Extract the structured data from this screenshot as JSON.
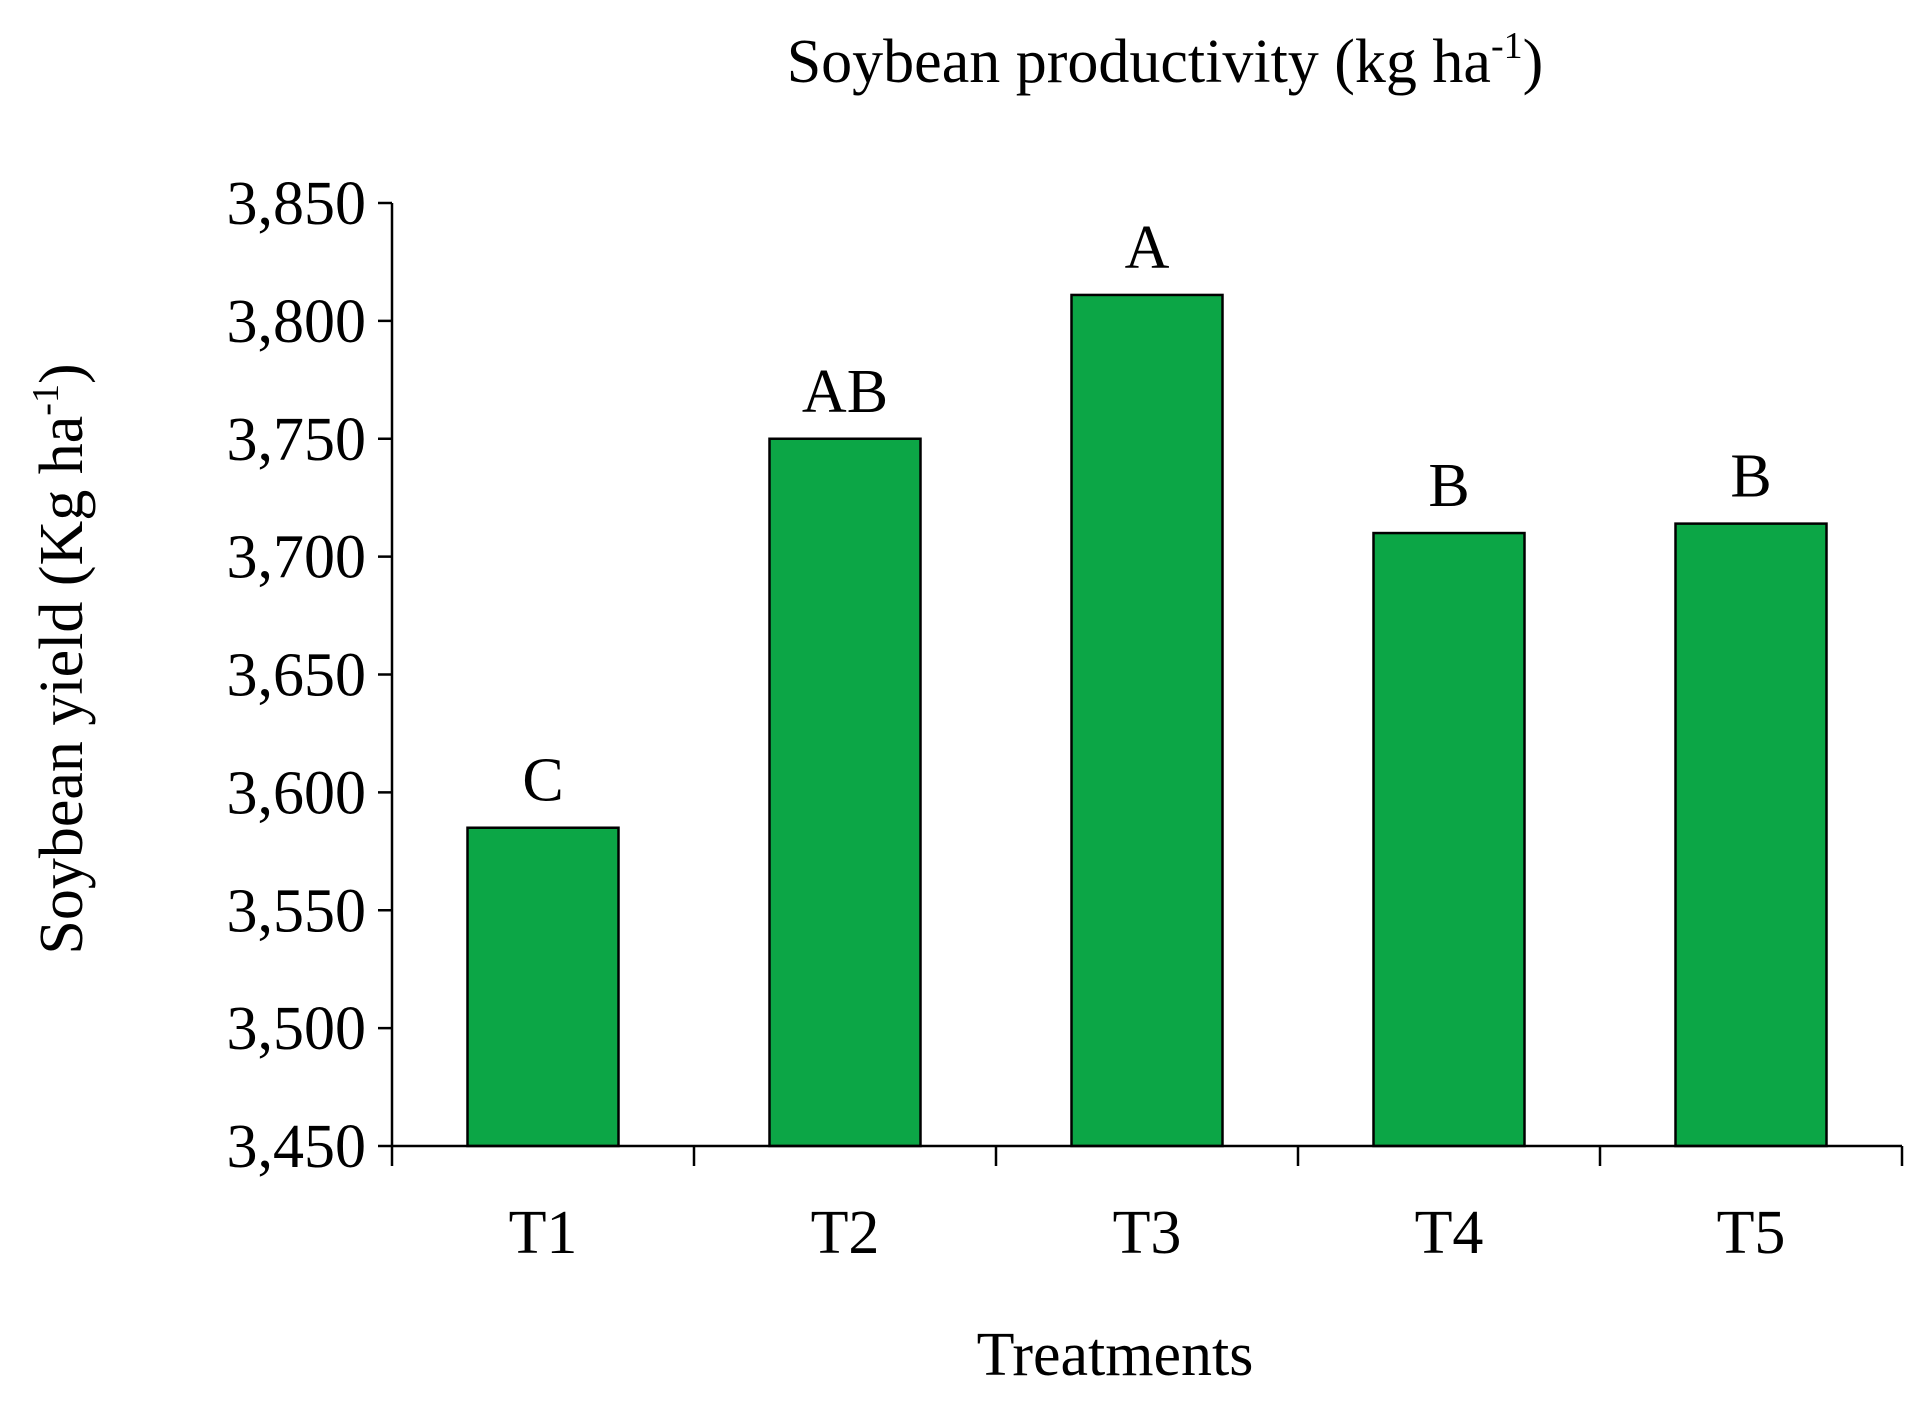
{
  "chart_data": {
    "type": "bar",
    "title": "Soybean productivity (kg ha",
    "title_sup": "-1",
    "title_end": ")",
    "xlabel": "Treatments",
    "ylabel": "Soybean yield (Kg ha",
    "ylabel_sup": "-1",
    "ylabel_end": ")",
    "categories": [
      "T1",
      "T2",
      "T3",
      "T4",
      "T5"
    ],
    "values": [
      3585,
      3750,
      3811,
      3710,
      3714
    ],
    "data_labels": [
      "C",
      "AB",
      "A",
      "B",
      "B"
    ],
    "ylim": [
      3450,
      3850
    ],
    "yticks": [
      3450,
      3500,
      3550,
      3600,
      3650,
      3700,
      3750,
      3800,
      3850
    ],
    "ytick_labels": [
      "3,450",
      "3,500",
      "3,550",
      "3,600",
      "3,650",
      "3,700",
      "3,750",
      "3,800",
      "3,850"
    ],
    "bar_color": "#0ca646",
    "grid": false,
    "legend": "none"
  }
}
